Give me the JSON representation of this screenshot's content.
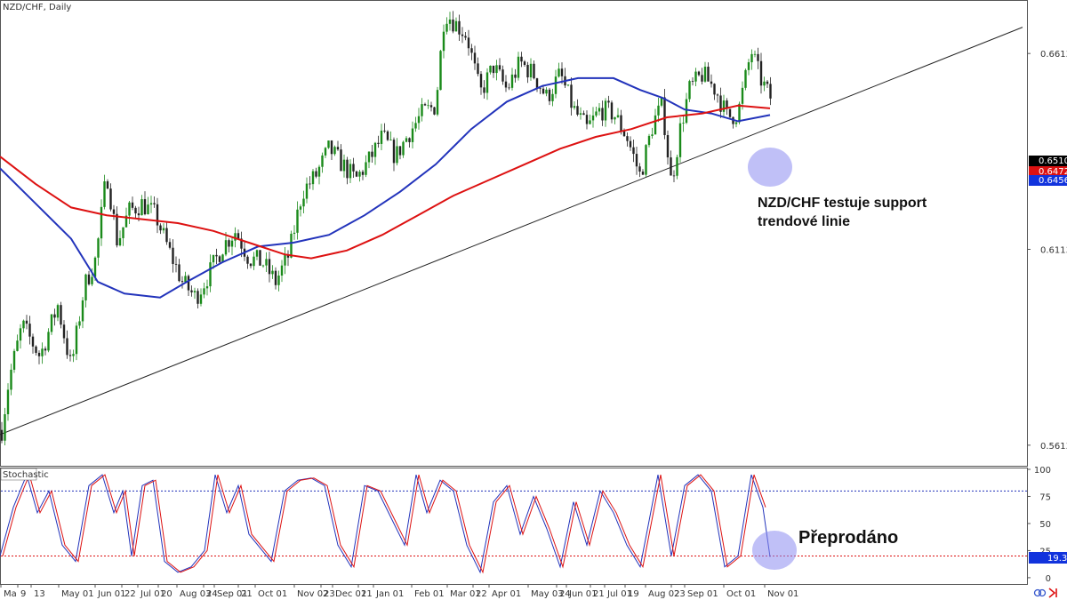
{
  "header": {
    "symbol_label": "NZD/CHF, Daily"
  },
  "subpanel": {
    "label": "Stochastic"
  },
  "annotations": {
    "trendline_note_line1": "NZD/CHF testuje support",
    "trendline_note_line2": "trendové linie",
    "oversold_note": "Přeprodáno"
  },
  "price_tags": {
    "last": "0.65101",
    "mid": "0.64726",
    "ma": "0.64560",
    "stoch": "19.30"
  },
  "colors": {
    "candle_up": "#1a8a1a",
    "candle_down": "#222222",
    "ma_fast": "#2233bb",
    "ma_slow": "#dd1111",
    "trendline": "#222222",
    "stoch_k": "#2233bb",
    "stoch_d": "#dd1111",
    "overbought_line": "#2233bb",
    "oversold_line": "#dd1111",
    "highlight_circle": "#8c8cf0",
    "tag_black": "#000000",
    "tag_red": "#dd1111",
    "tag_blue": "#1133dd"
  },
  "chart_data": [
    {
      "type": "candlestick",
      "title": "NZD/CHF, Daily",
      "y_ticks": [
        "0.66130",
        "0.61130",
        "0.56130"
      ],
      "x_ticks": [
        "Ma",
        "9",
        "13",
        "May 01",
        "Jun 01",
        "22",
        "Jul 01",
        "20",
        "Aug 03",
        "24",
        "Sep 01",
        "21",
        "Oct 01",
        "Nov 02",
        "23",
        "Dec 01",
        "21",
        "Jan 01",
        "Feb 01",
        "Mar 01",
        "22",
        "Apr 01",
        "May 03",
        "24",
        "Jun 01",
        "21",
        "Jul 01",
        "19",
        "Aug 02",
        "23",
        "Sep 01",
        "Oct 01",
        "Nov 01"
      ],
      "ylim": [
        0.5565,
        0.6745
      ],
      "price_path": [
        [
          0,
          0.562
        ],
        [
          10,
          0.578
        ],
        [
          25,
          0.592
        ],
        [
          45,
          0.584
        ],
        [
          65,
          0.597
        ],
        [
          80,
          0.581
        ],
        [
          95,
          0.602
        ],
        [
          108,
          0.609
        ],
        [
          120,
          0.631
        ],
        [
          132,
          0.613
        ],
        [
          145,
          0.621
        ],
        [
          160,
          0.623
        ],
        [
          175,
          0.62
        ],
        [
          190,
          0.611
        ],
        [
          205,
          0.603
        ],
        [
          220,
          0.599
        ],
        [
          235,
          0.605
        ],
        [
          250,
          0.612
        ],
        [
          265,
          0.616
        ],
        [
          280,
          0.609
        ],
        [
          295,
          0.608
        ],
        [
          310,
          0.603
        ],
        [
          325,
          0.61
        ],
        [
          340,
          0.626
        ],
        [
          355,
          0.63
        ],
        [
          370,
          0.637
        ],
        [
          385,
          0.633
        ],
        [
          400,
          0.629
        ],
        [
          415,
          0.634
        ],
        [
          430,
          0.64
        ],
        [
          445,
          0.635
        ],
        [
          460,
          0.641
        ],
        [
          475,
          0.646
        ],
        [
          490,
          0.648
        ],
        [
          500,
          0.672
        ],
        [
          512,
          0.669
        ],
        [
          525,
          0.666
        ],
        [
          540,
          0.651
        ],
        [
          555,
          0.658
        ],
        [
          570,
          0.652
        ],
        [
          585,
          0.659
        ],
        [
          600,
          0.656
        ],
        [
          615,
          0.65
        ],
        [
          630,
          0.656
        ],
        [
          645,
          0.647
        ],
        [
          660,
          0.642
        ],
        [
          675,
          0.647
        ],
        [
          690,
          0.646
        ],
        [
          705,
          0.64
        ],
        [
          720,
          0.63
        ],
        [
          735,
          0.644
        ],
        [
          745,
          0.648
        ],
        [
          755,
          0.628
        ],
        [
          765,
          0.642
        ],
        [
          775,
          0.652
        ],
        [
          790,
          0.656
        ],
        [
          805,
          0.652
        ],
        [
          818,
          0.645
        ],
        [
          830,
          0.646
        ],
        [
          845,
          0.662
        ],
        [
          855,
          0.655
        ],
        [
          866,
          0.65
        ],
        [
          870,
          0.651
        ]
      ],
      "ma_fast_path": [
        [
          0,
          0.632
        ],
        [
          40,
          0.623
        ],
        [
          80,
          0.614
        ],
        [
          110,
          0.603
        ],
        [
          140,
          0.6
        ],
        [
          180,
          0.599
        ],
        [
          210,
          0.603
        ],
        [
          250,
          0.608
        ],
        [
          290,
          0.612
        ],
        [
          330,
          0.613
        ],
        [
          370,
          0.615
        ],
        [
          410,
          0.62
        ],
        [
          450,
          0.626
        ],
        [
          490,
          0.633
        ],
        [
          530,
          0.642
        ],
        [
          570,
          0.649
        ],
        [
          610,
          0.653
        ],
        [
          650,
          0.655
        ],
        [
          690,
          0.655
        ],
        [
          720,
          0.652
        ],
        [
          745,
          0.65
        ],
        [
          770,
          0.647
        ],
        [
          800,
          0.646
        ],
        [
          830,
          0.644
        ],
        [
          866,
          0.6456
        ]
      ],
      "ma_slow_path": [
        [
          0,
          0.635
        ],
        [
          40,
          0.628
        ],
        [
          80,
          0.622
        ],
        [
          120,
          0.62
        ],
        [
          160,
          0.619
        ],
        [
          200,
          0.618
        ],
        [
          240,
          0.616
        ],
        [
          280,
          0.613
        ],
        [
          320,
          0.61
        ],
        [
          350,
          0.609
        ],
        [
          390,
          0.611
        ],
        [
          430,
          0.615
        ],
        [
          470,
          0.62
        ],
        [
          510,
          0.625
        ],
        [
          550,
          0.629
        ],
        [
          590,
          0.633
        ],
        [
          630,
          0.637
        ],
        [
          670,
          0.64
        ],
        [
          710,
          0.642
        ],
        [
          750,
          0.645
        ],
        [
          790,
          0.646
        ],
        [
          830,
          0.648
        ],
        [
          866,
          0.6473
        ]
      ],
      "trendline": [
        [
          0,
          0.564
        ],
        [
          1150,
          0.668
        ]
      ]
    },
    {
      "type": "line",
      "title": "Stochastic",
      "y_ticks": [
        "100",
        "75",
        "50",
        "25",
        "0"
      ],
      "ylim": [
        -5,
        100
      ],
      "levels": {
        "overbought": 80,
        "oversold": 20
      },
      "series": [
        {
          "values": [
            [
              0,
              20
            ],
            [
              15,
              65
            ],
            [
              30,
              95
            ],
            [
              42,
              60
            ],
            [
              55,
              80
            ],
            [
              70,
              30
            ],
            [
              85,
              15
            ],
            [
              100,
              85
            ],
            [
              115,
              95
            ],
            [
              128,
              60
            ],
            [
              138,
              80
            ],
            [
              148,
              20
            ],
            [
              160,
              85
            ],
            [
              172,
              90
            ],
            [
              185,
              15
            ],
            [
              200,
              5
            ],
            [
              215,
              10
            ],
            [
              230,
              25
            ],
            [
              242,
              95
            ],
            [
              255,
              60
            ],
            [
              268,
              85
            ],
            [
              280,
              40
            ],
            [
              295,
              25
            ],
            [
              305,
              15
            ],
            [
              320,
              80
            ],
            [
              335,
              90
            ],
            [
              350,
              92
            ],
            [
              365,
              85
            ],
            [
              380,
              30
            ],
            [
              395,
              10
            ],
            [
              410,
              85
            ],
            [
              425,
              80
            ],
            [
              440,
              55
            ],
            [
              455,
              30
            ],
            [
              468,
              95
            ],
            [
              480,
              60
            ],
            [
              495,
              90
            ],
            [
              510,
              80
            ],
            [
              525,
              30
            ],
            [
              540,
              5
            ],
            [
              555,
              70
            ],
            [
              570,
              85
            ],
            [
              585,
              40
            ],
            [
              600,
              75
            ],
            [
              615,
              45
            ],
            [
              630,
              10
            ],
            [
              645,
              70
            ],
            [
              660,
              30
            ],
            [
              675,
              80
            ],
            [
              690,
              60
            ],
            [
              705,
              30
            ],
            [
              720,
              10
            ],
            [
              740,
              95
            ],
            [
              755,
              20
            ],
            [
              770,
              85
            ],
            [
              785,
              95
            ],
            [
              800,
              80
            ],
            [
              815,
              10
            ],
            [
              830,
              20
            ],
            [
              845,
              95
            ],
            [
              858,
              65
            ],
            [
              866,
              19.3
            ]
          ]
        }
      ]
    }
  ]
}
